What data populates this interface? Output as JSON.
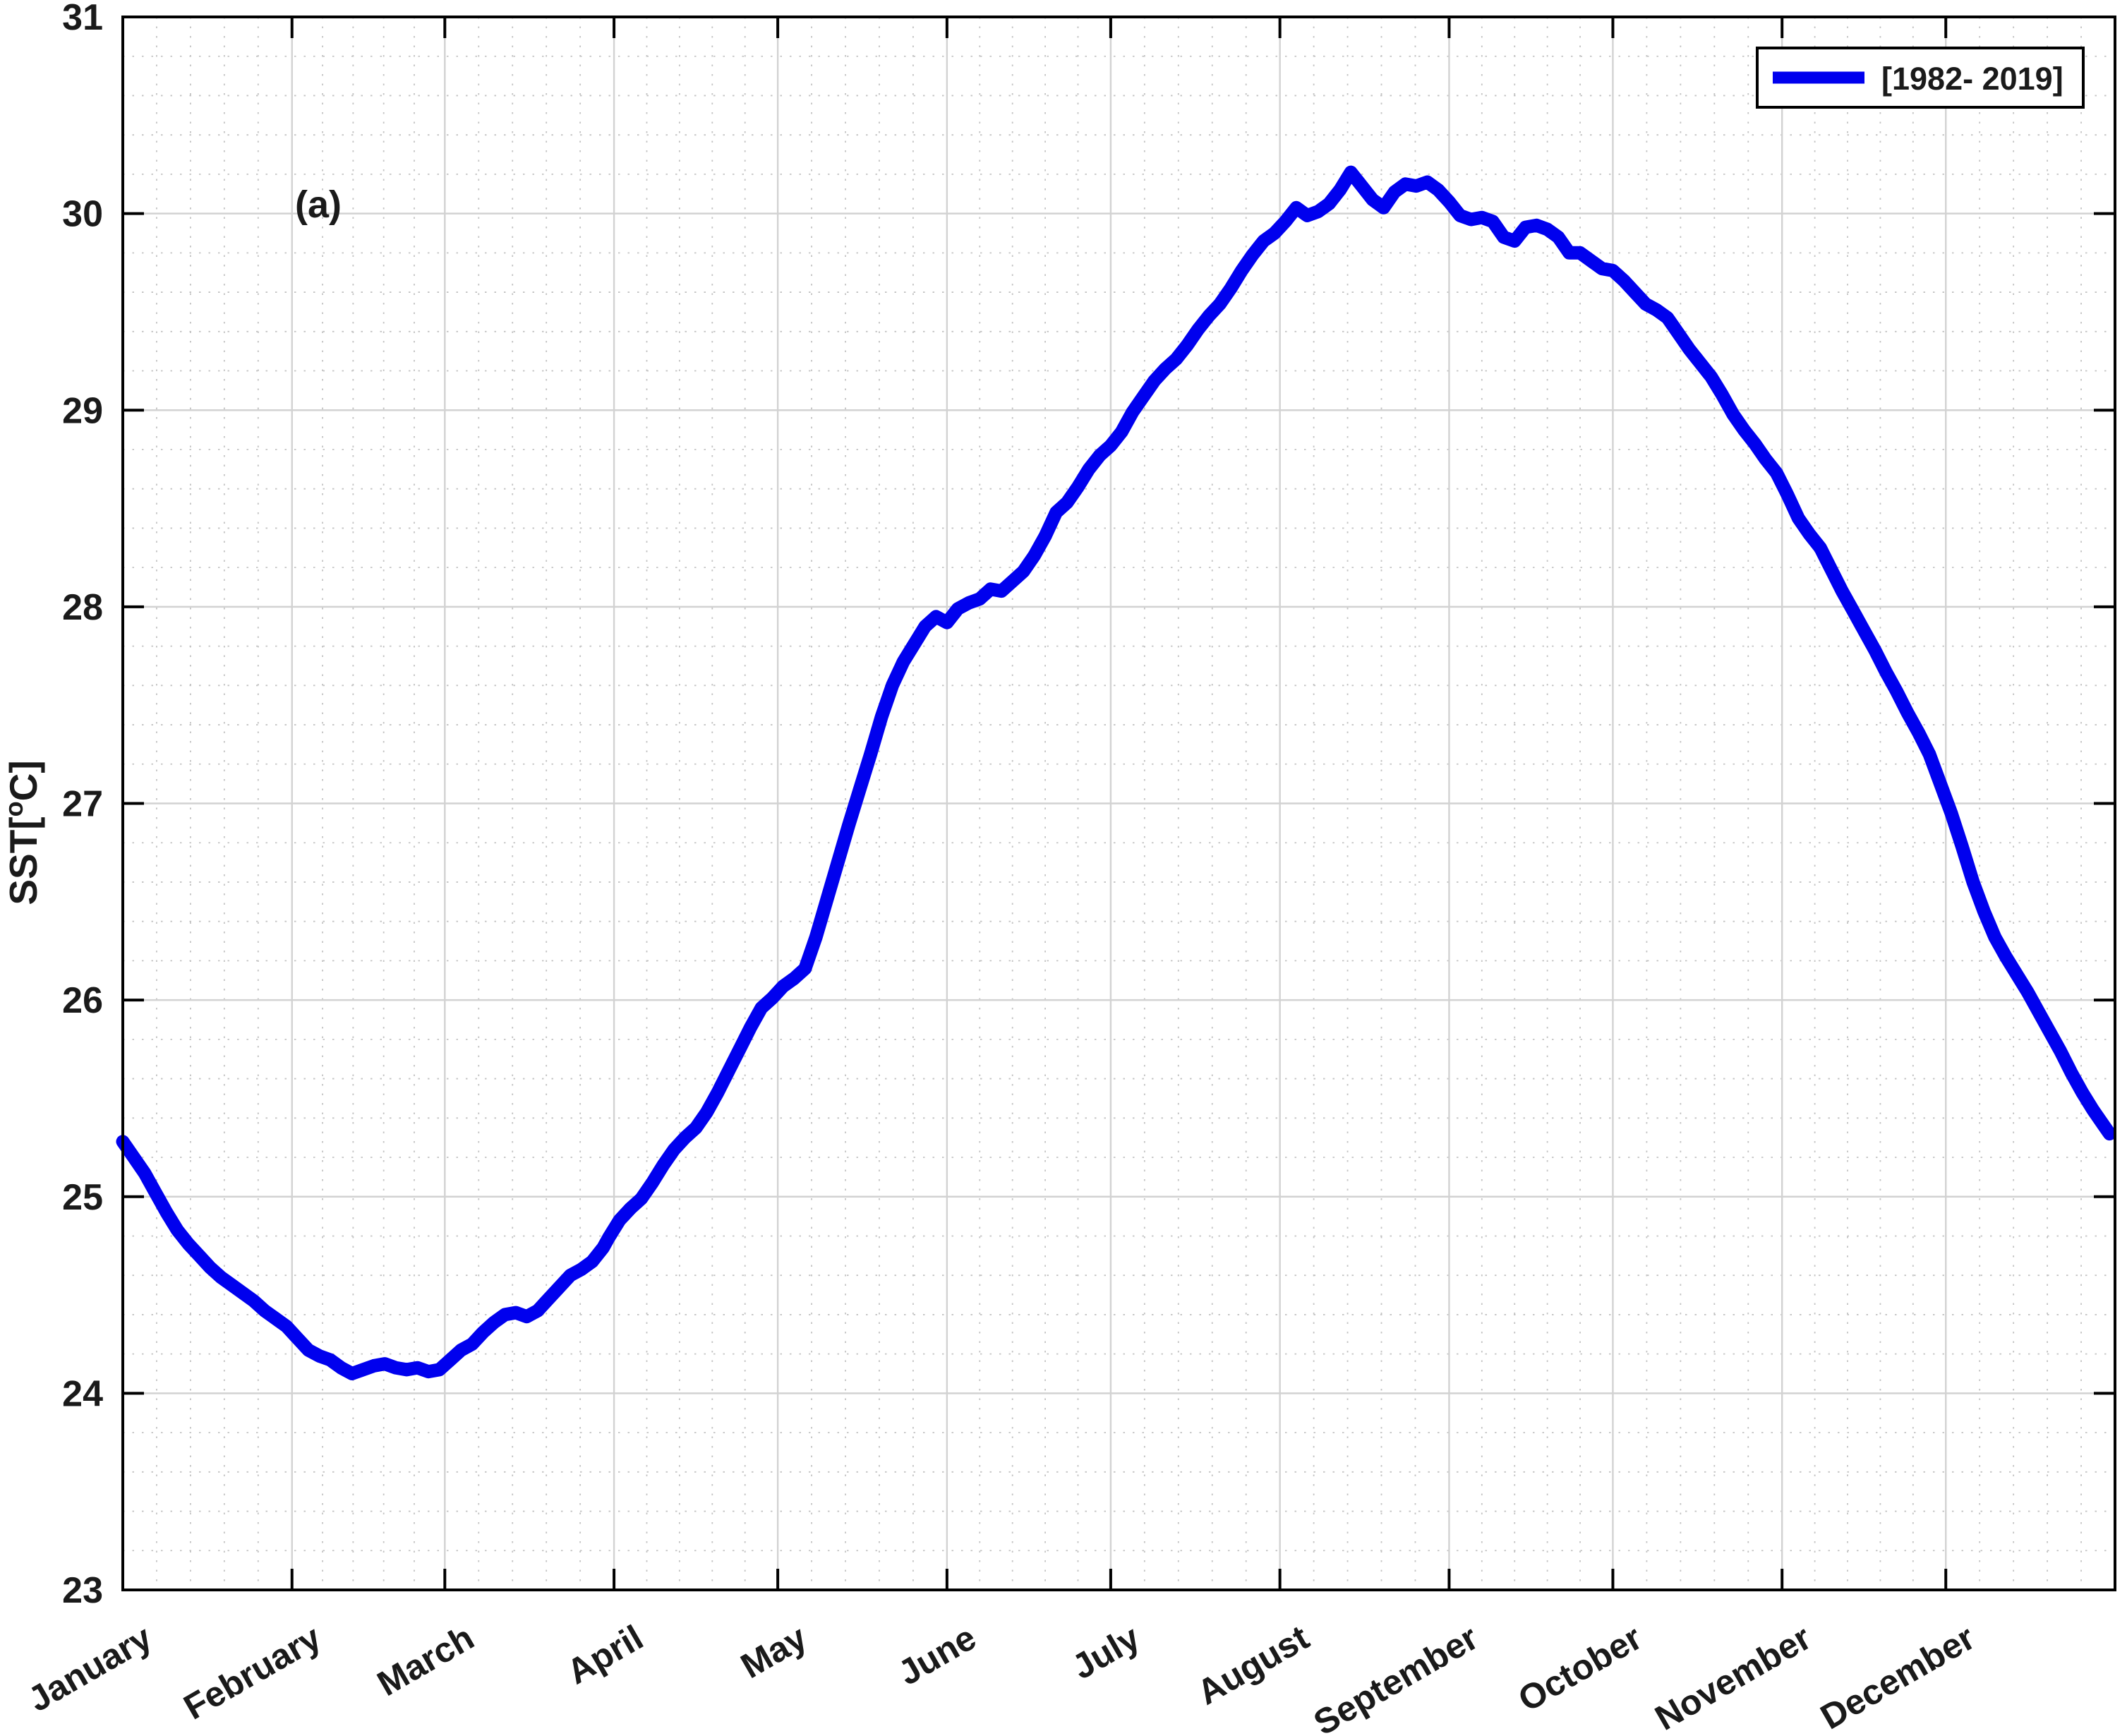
{
  "figure": {
    "panel_label": "(a)",
    "ylabel": {
      "prefix": "SST[",
      "sup": "o",
      "suffix": "C]"
    },
    "legend": {
      "label": "[1982- 2019]"
    },
    "colors": {
      "line": "#0000EE",
      "axis": "#000000",
      "grid_major": "#d2d2d2",
      "grid_minor": "#c3c3c3",
      "background": "#ffffff",
      "text": "#1a1a1a"
    }
  },
  "chart_data": {
    "type": "line",
    "title": "",
    "xlabel": "",
    "ylabel": "SST[°C]",
    "panel": "(a)",
    "legend_entries": [
      "[1982- 2019]"
    ],
    "legend_position": "top-right",
    "grid": "major solid gray + minor dotted",
    "x_unit": "day_of_year",
    "xlim": [
      1,
      366
    ],
    "ylim": [
      23,
      31
    ],
    "y_ticks": [
      23,
      24,
      25,
      26,
      27,
      28,
      29,
      30,
      31
    ],
    "x_minor_divisions_per_month": 5,
    "y_minor_step": 0.2,
    "x_tick_rotation_deg": 30,
    "categories": [
      "January",
      "February",
      "March",
      "April",
      "May",
      "June",
      "July",
      "August",
      "September",
      "October",
      "November",
      "December"
    ],
    "month_start_days": [
      1,
      32,
      60,
      91,
      121,
      152,
      182,
      213,
      244,
      274,
      305,
      335
    ],
    "series": [
      {
        "name": "[1982- 2019]",
        "color": "#0000EE",
        "points": [
          [
            1,
            25.28
          ],
          [
            3,
            25.2
          ],
          [
            5,
            25.12
          ],
          [
            7,
            25.02
          ],
          [
            9,
            24.92
          ],
          [
            11,
            24.83
          ],
          [
            13,
            24.76
          ],
          [
            15,
            24.7
          ],
          [
            17,
            24.64
          ],
          [
            19,
            24.59
          ],
          [
            21,
            24.55
          ],
          [
            23,
            24.51
          ],
          [
            25,
            24.47
          ],
          [
            27,
            24.42
          ],
          [
            29,
            24.38
          ],
          [
            31,
            24.34
          ],
          [
            33,
            24.28
          ],
          [
            35,
            24.22
          ],
          [
            37,
            24.19
          ],
          [
            39,
            24.17
          ],
          [
            41,
            24.13
          ],
          [
            43,
            24.1
          ],
          [
            45,
            24.12
          ],
          [
            47,
            24.14
          ],
          [
            49,
            24.15
          ],
          [
            51,
            24.13
          ],
          [
            53,
            24.12
          ],
          [
            55,
            24.13
          ],
          [
            57,
            24.11
          ],
          [
            59,
            24.12
          ],
          [
            61,
            24.17
          ],
          [
            63,
            24.22
          ],
          [
            65,
            24.25
          ],
          [
            67,
            24.31
          ],
          [
            69,
            24.36
          ],
          [
            71,
            24.4
          ],
          [
            73,
            24.41
          ],
          [
            75,
            24.39
          ],
          [
            77,
            24.42
          ],
          [
            79,
            24.48
          ],
          [
            81,
            24.54
          ],
          [
            83,
            24.6
          ],
          [
            85,
            24.63
          ],
          [
            87,
            24.67
          ],
          [
            89,
            24.74
          ],
          [
            90,
            24.79
          ],
          [
            92,
            24.88
          ],
          [
            94,
            24.94
          ],
          [
            96,
            24.99
          ],
          [
            98,
            25.07
          ],
          [
            100,
            25.16
          ],
          [
            102,
            25.24
          ],
          [
            104,
            25.3
          ],
          [
            106,
            25.35
          ],
          [
            108,
            25.43
          ],
          [
            110,
            25.53
          ],
          [
            112,
            25.64
          ],
          [
            114,
            25.75
          ],
          [
            116,
            25.86
          ],
          [
            118,
            25.96
          ],
          [
            120,
            26.01
          ],
          [
            122,
            26.07
          ],
          [
            124,
            26.11
          ],
          [
            126,
            26.16
          ],
          [
            128,
            26.32
          ],
          [
            130,
            26.51
          ],
          [
            132,
            26.7
          ],
          [
            134,
            26.89
          ],
          [
            136,
            27.07
          ],
          [
            138,
            27.25
          ],
          [
            140,
            27.44
          ],
          [
            142,
            27.6
          ],
          [
            144,
            27.72
          ],
          [
            146,
            27.81
          ],
          [
            148,
            27.9
          ],
          [
            150,
            27.95
          ],
          [
            152,
            27.92
          ],
          [
            154,
            27.99
          ],
          [
            156,
            28.02
          ],
          [
            158,
            28.04
          ],
          [
            160,
            28.09
          ],
          [
            162,
            28.08
          ],
          [
            164,
            28.13
          ],
          [
            166,
            28.18
          ],
          [
            168,
            28.26
          ],
          [
            170,
            28.36
          ],
          [
            172,
            28.48
          ],
          [
            174,
            28.53
          ],
          [
            176,
            28.61
          ],
          [
            178,
            28.7
          ],
          [
            180,
            28.77
          ],
          [
            182,
            28.82
          ],
          [
            184,
            28.89
          ],
          [
            186,
            28.99
          ],
          [
            188,
            29.07
          ],
          [
            190,
            29.15
          ],
          [
            192,
            29.21
          ],
          [
            194,
            29.26
          ],
          [
            196,
            29.33
          ],
          [
            198,
            29.41
          ],
          [
            200,
            29.48
          ],
          [
            202,
            29.54
          ],
          [
            204,
            29.62
          ],
          [
            206,
            29.71
          ],
          [
            208,
            29.79
          ],
          [
            210,
            29.86
          ],
          [
            212,
            29.9
          ],
          [
            214,
            29.96
          ],
          [
            216,
            30.03
          ],
          [
            218,
            29.99
          ],
          [
            220,
            30.01
          ],
          [
            222,
            30.05
          ],
          [
            224,
            30.12
          ],
          [
            226,
            30.21
          ],
          [
            228,
            30.14
          ],
          [
            230,
            30.07
          ],
          [
            232,
            30.03
          ],
          [
            234,
            30.11
          ],
          [
            236,
            30.15
          ],
          [
            238,
            30.14
          ],
          [
            240,
            30.16
          ],
          [
            242,
            30.12
          ],
          [
            244,
            30.06
          ],
          [
            246,
            29.99
          ],
          [
            248,
            29.97
          ],
          [
            250,
            29.98
          ],
          [
            252,
            29.96
          ],
          [
            254,
            29.88
          ],
          [
            256,
            29.86
          ],
          [
            258,
            29.93
          ],
          [
            260,
            29.94
          ],
          [
            262,
            29.92
          ],
          [
            264,
            29.88
          ],
          [
            266,
            29.8
          ],
          [
            268,
            29.8
          ],
          [
            270,
            29.76
          ],
          [
            272,
            29.72
          ],
          [
            274,
            29.71
          ],
          [
            276,
            29.66
          ],
          [
            278,
            29.6
          ],
          [
            280,
            29.54
          ],
          [
            282,
            29.51
          ],
          [
            284,
            29.47
          ],
          [
            286,
            29.39
          ],
          [
            288,
            29.31
          ],
          [
            290,
            29.24
          ],
          [
            292,
            29.17
          ],
          [
            294,
            29.08
          ],
          [
            296,
            28.98
          ],
          [
            298,
            28.9
          ],
          [
            300,
            28.83
          ],
          [
            302,
            28.75
          ],
          [
            304,
            28.68
          ],
          [
            306,
            28.57
          ],
          [
            308,
            28.45
          ],
          [
            310,
            28.37
          ],
          [
            312,
            28.3
          ],
          [
            314,
            28.19
          ],
          [
            316,
            28.08
          ],
          [
            318,
            27.98
          ],
          [
            320,
            27.88
          ],
          [
            322,
            27.78
          ],
          [
            324,
            27.67
          ],
          [
            326,
            27.57
          ],
          [
            328,
            27.46
          ],
          [
            330,
            27.36
          ],
          [
            332,
            27.25
          ],
          [
            334,
            27.1
          ],
          [
            336,
            26.95
          ],
          [
            338,
            26.78
          ],
          [
            340,
            26.6
          ],
          [
            342,
            26.45
          ],
          [
            344,
            26.32
          ],
          [
            346,
            26.22
          ],
          [
            348,
            26.13
          ],
          [
            350,
            26.04
          ],
          [
            352,
            25.94
          ],
          [
            354,
            25.84
          ],
          [
            356,
            25.74
          ],
          [
            358,
            25.63
          ],
          [
            360,
            25.53
          ],
          [
            362,
            25.44
          ],
          [
            364,
            25.36
          ],
          [
            365,
            25.32
          ]
        ]
      }
    ]
  }
}
